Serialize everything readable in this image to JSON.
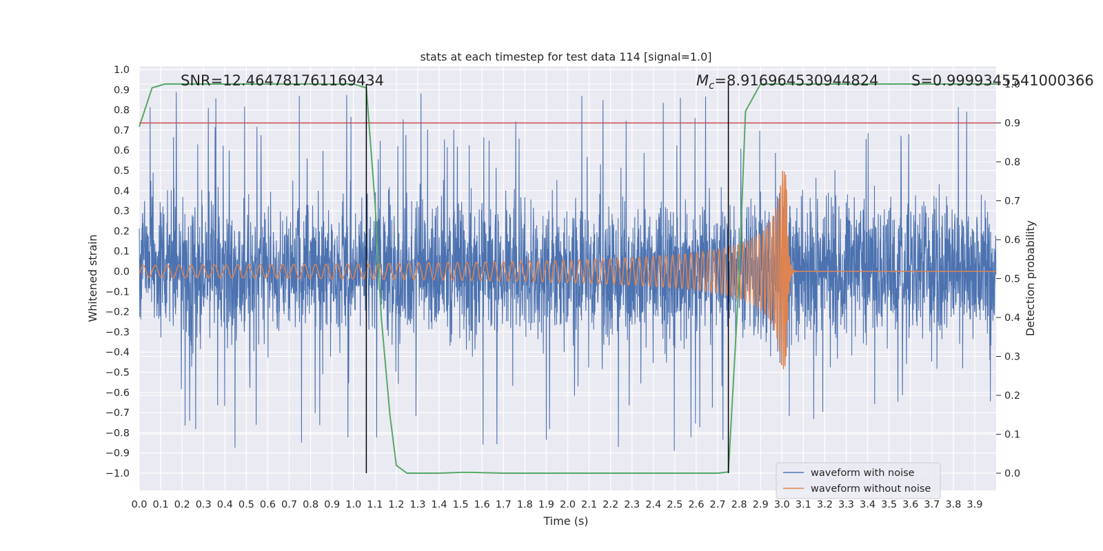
{
  "chart_data": {
    "type": "line",
    "title": "stats at each timestep for test data 114 [signal=1.0]",
    "xlabel": "Time (s)",
    "ylabel": "Whitened strain",
    "ylabel_right": "Detection probability",
    "xlim": [
      0.0,
      4.0
    ],
    "ylim": [
      -1.09,
      1.0
    ],
    "ylim_right": [
      -0.05,
      1.0
    ],
    "x_ticks": [
      "0.0",
      "0.1",
      "0.2",
      "0.3",
      "0.4",
      "0.5",
      "0.6",
      "0.7",
      "0.8",
      "0.9",
      "1.0",
      "1.1",
      "1.2",
      "1.3",
      "1.4",
      "1.5",
      "1.6",
      "1.7",
      "1.8",
      "1.9",
      "2.0",
      "2.1",
      "2.2",
      "2.3",
      "2.4",
      "2.5",
      "2.6",
      "2.7",
      "2.8",
      "2.9",
      "3.0",
      "3.1",
      "3.2",
      "3.3",
      "3.4",
      "3.5",
      "3.6",
      "3.7",
      "3.8",
      "3.9"
    ],
    "y_ticks": [
      "1.0",
      "0.9",
      "0.8",
      "0.7",
      "0.6",
      "0.5",
      "0.4",
      "0.3",
      "0.2",
      "0.1",
      "0.0",
      "−0.1",
      "−0.2",
      "−0.3",
      "−0.4",
      "−0.5",
      "−0.6",
      "−0.7",
      "−0.8",
      "−0.9",
      "−1.0"
    ],
    "y_ticks_right": [
      "1.0",
      "0.9",
      "0.8",
      "0.7",
      "0.6",
      "0.5",
      "0.4",
      "0.3",
      "0.2",
      "0.1",
      "0.0"
    ],
    "grid": true,
    "legend_position": "lower-right",
    "series": [
      {
        "name": "waveform with noise",
        "color": "#4c72b0",
        "description_values": "dense noise roughly within [-1.0, 0.92]"
      },
      {
        "name": "waveform without noise",
        "color": "#dd8452",
        "chirp": {
          "start_amplitude": 0.03,
          "merger_time": 3.02,
          "peak_amplitude": 0.5,
          "trough": -0.39,
          "start_freq_hz": 20
        }
      },
      {
        "name": "",
        "color": "#55a868",
        "axis": "right",
        "x": [
          0.0,
          0.06,
          0.12,
          0.2,
          0.5,
          1.0,
          1.06,
          1.1,
          1.13,
          1.17,
          1.2,
          1.25,
          1.4,
          1.5,
          1.55,
          1.7,
          2.0,
          2.5,
          2.7,
          2.75,
          2.8,
          2.83,
          2.9,
          3.0,
          3.5,
          4.0
        ],
        "y": [
          0.89,
          0.99,
          1.0,
          1.0,
          1.0,
          1.0,
          0.99,
          0.7,
          0.4,
          0.15,
          0.02,
          0.0,
          0.0,
          0.002,
          0.002,
          0.0,
          0.0,
          0.0,
          0.0,
          0.003,
          0.5,
          0.93,
          1.0,
          1.0,
          1.0,
          1.0
        ]
      }
    ],
    "threshold_line": {
      "axis": "right",
      "value": 0.9,
      "color": "#c44e52"
    },
    "vertical_lines": [
      1.06,
      2.75
    ],
    "annotations": {
      "snr": "SNR=12.464781761169434",
      "mc_symbol": "M",
      "mc_sub": "c",
      "mc_value": "=8.916964530944824",
      "s": "S=0.9999345541000366"
    }
  }
}
